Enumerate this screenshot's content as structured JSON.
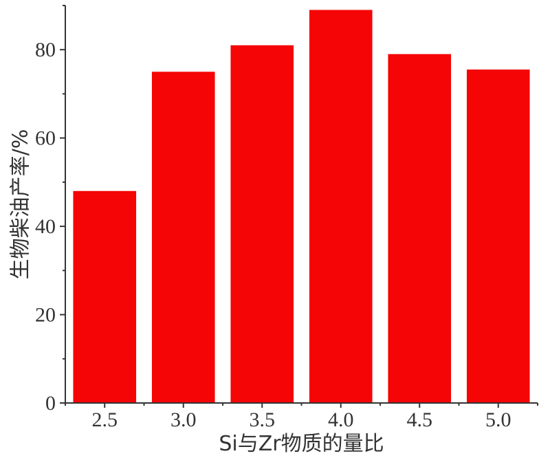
{
  "chart_data": {
    "type": "bar",
    "categories": [
      "2.5",
      "3.0",
      "3.5",
      "4.0",
      "4.5",
      "5.0"
    ],
    "values": [
      48,
      75,
      81,
      89,
      79,
      75.5
    ],
    "xlabel": "Si与Zr物质的量比",
    "ylabel": "生物柴油产率/%",
    "ylim": [
      0,
      90
    ],
    "yticks": [
      "0",
      "20",
      "40",
      "60",
      "80"
    ],
    "grid": false,
    "bar_color": "#f50505",
    "axis_color": "#333333"
  }
}
